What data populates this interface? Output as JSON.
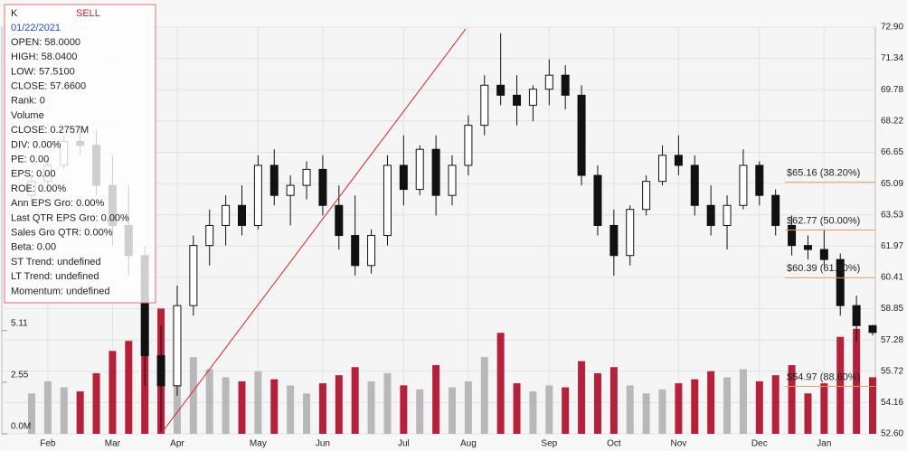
{
  "chart_data": {
    "type": "candlestick",
    "categories": [
      null,
      "Feb",
      null,
      null,
      null,
      "Mar",
      null,
      null,
      null,
      "Apr",
      null,
      null,
      null,
      null,
      "May",
      null,
      null,
      null,
      "Jun",
      null,
      null,
      null,
      null,
      "Jul",
      null,
      null,
      null,
      "Aug",
      null,
      null,
      null,
      null,
      "Sep",
      null,
      null,
      null,
      "Oct",
      null,
      null,
      null,
      "Nov",
      null,
      null,
      null,
      null,
      "Dec",
      null,
      null,
      null,
      "Jan",
      null,
      null,
      null
    ],
    "series": [
      {
        "name": "open",
        "values": [
          64.5,
          65.2,
          66,
          67.2,
          67,
          65,
          63,
          61.5,
          56.5,
          55,
          59,
          62,
          63,
          64,
          63,
          66,
          64.5,
          65,
          65.8,
          64,
          62.5,
          61,
          62.5,
          66,
          64.8,
          66.8,
          64.5,
          66,
          68,
          70,
          69.5,
          69,
          69.8,
          70.5,
          69.5,
          65.5,
          63,
          61.5,
          63.8,
          65.2,
          66.5,
          66,
          64,
          63,
          64,
          66,
          64.5,
          63,
          62,
          61.8,
          61.3,
          59,
          58
        ]
      },
      {
        "name": "high",
        "values": [
          65.5,
          66.3,
          67.5,
          68,
          67.8,
          66.5,
          65,
          62,
          58,
          60,
          62.5,
          63.8,
          64.5,
          65,
          66.5,
          66.8,
          65.5,
          66.2,
          66.5,
          65,
          64.5,
          62.8,
          66.5,
          67.5,
          67,
          67.5,
          66.5,
          68.5,
          70.5,
          72.6,
          70.5,
          70,
          71.3,
          71,
          70,
          66,
          63.8,
          64,
          65.5,
          67,
          67.5,
          66.5,
          65,
          64.5,
          66.8,
          66.2,
          64.8,
          63.5,
          62.5,
          62.8,
          61.6,
          59.5,
          58.04
        ]
      },
      {
        "name": "low",
        "values": [
          64,
          64.8,
          65.8,
          66.5,
          64.5,
          62,
          60.5,
          55,
          52.7,
          54.5,
          58.5,
          61,
          62,
          62.5,
          62.8,
          64,
          63,
          64.3,
          63.5,
          61.8,
          60.5,
          60.6,
          62,
          64,
          64.5,
          63.5,
          64,
          65.5,
          67.5,
          69,
          68,
          68.2,
          69,
          68.8,
          65,
          62.5,
          60.5,
          61,
          63.5,
          65,
          65.5,
          63.5,
          62.5,
          61.8,
          63.8,
          64,
          62.5,
          61.5,
          61.3,
          61,
          58.5,
          57.2,
          57.51
        ]
      },
      {
        "name": "close",
        "values": [
          65.2,
          66,
          67.2,
          67,
          65,
          63,
          61.5,
          56.5,
          55,
          59,
          62,
          63,
          64,
          63,
          66,
          64.5,
          65,
          65.8,
          64,
          62.5,
          61,
          62.5,
          66,
          64.8,
          66.8,
          64.5,
          66,
          68,
          70,
          69.5,
          69,
          69.8,
          70.5,
          69.5,
          65.5,
          63,
          61.5,
          63.8,
          65.2,
          66.5,
          66,
          64,
          63,
          64,
          66,
          64.5,
          63,
          62,
          61.8,
          61.3,
          59,
          58,
          57.66
        ]
      },
      {
        "name": "volume",
        "axis": "y2",
        "values": [
          2.0,
          2.6,
          2.3,
          2.1,
          3.0,
          4.1,
          4.6,
          5.8,
          6.2,
          4.9,
          3.8,
          3.2,
          2.8,
          2.6,
          3.1,
          2.7,
          2.4,
          2.0,
          2.5,
          2.9,
          3.3,
          2.6,
          3.0,
          2.4,
          2.2,
          3.4,
          2.3,
          2.6,
          3.8,
          5.0,
          2.5,
          2.1,
          2.4,
          2.3,
          3.6,
          3.0,
          3.3,
          2.4,
          2.0,
          2.2,
          2.5,
          2.7,
          3.1,
          2.8,
          3.2,
          2.6,
          2.9,
          3.4,
          2.0,
          2.5,
          4.8,
          5.2,
          2.8
        ]
      }
    ],
    "up_color": "#b8b8b8",
    "down_color": "#b5203a",
    "ylim": [
      52.6,
      72.9
    ],
    "yticks": [
      {
        "value": 72.9,
        "label": "72.90"
      },
      71.34,
      69.78,
      68.22,
      66.65,
      65.09,
      63.53,
      61.97,
      60.41,
      58.85,
      57.28,
      55.72,
      54.16,
      {
        "value": 52.6,
        "label": "52.60"
      }
    ],
    "y2lim": [
      0,
      20.13
    ],
    "y2ticks": [
      {
        "value": 0,
        "label": "0.0M"
      },
      2.55,
      5.11
    ],
    "fib_levels": [
      {
        "value": 65.16,
        "label": "$65.16 (38.20%)"
      },
      {
        "value": 62.77,
        "label": "$62.77 (50.00%)"
      },
      {
        "value": 60.39,
        "label": "$60.39 (61.80%)"
      },
      {
        "value": 54.97,
        "label": "$54.97 (88.60%)"
      }
    ],
    "grid": true,
    "info_panel": {
      "symbol": "K",
      "signal": "SELL",
      "date": "01/22/2021",
      "lines": [
        "OPEN: 58.0000",
        "HIGH: 58.0400",
        "LOW: 57.5100",
        "CLOSE: 57.6600",
        "Rank: 0",
        "Volume",
        "CLOSE: 0.2757M",
        "DIV: 0.00%",
        "PE: 0.00",
        "EPS: 0.00",
        "ROE: 0.00%",
        "Ann EPS Gro: 0.00%",
        "Last QTR EPS Gro: 0.00%",
        "Sales Gro QTR: 0.00%",
        "Beta: 0.00",
        "ST Trend: undefined",
        "LT Trend: undefined",
        "Momentum: undefined"
      ]
    }
  }
}
